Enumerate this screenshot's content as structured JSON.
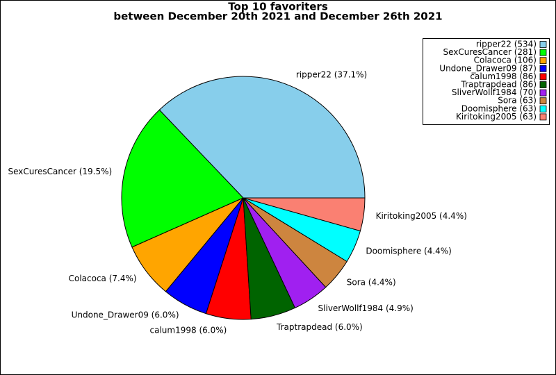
{
  "chart_data": {
    "type": "pie",
    "title": "Top 10 favoriters",
    "subtitle": "between December 20th 2021 and December 26th 2021",
    "values": [
      534,
      281,
      106,
      87,
      86,
      86,
      70,
      63,
      63,
      63
    ],
    "labels": [
      "ripper22 (37.1%)",
      "SexCuresCancer (19.5%)",
      "Colacoca (7.4%)",
      "Undone_Drawer09 (6.0%)",
      "calum1998 (6.0%)",
      "Traptrapdead (6.0%)",
      "SliverWollf1984 (4.9%)",
      "Sora (4.4%)",
      "Doomisphere (4.4%)",
      "Kiritoking2005 (4.4%)"
    ],
    "legend_labels": [
      "ripper22 (534)",
      "SexCuresCancer (281)",
      "Colacoca (106)",
      "Undone_Drawer09 (87)",
      "calum1998 (86)",
      "Traptrapdead (86)",
      "SliverWollf1984 (70)",
      "Sora (63)",
      "Doomisphere (63)",
      "Kiritoking2005 (63)"
    ],
    "colors": [
      "#87ceeb",
      "#00ff00",
      "#ffa500",
      "#0000ff",
      "#ff0000",
      "#006400",
      "#a020f0",
      "#cd853f",
      "#00ffff",
      "#fa8072"
    ],
    "legend": "upper right"
  }
}
